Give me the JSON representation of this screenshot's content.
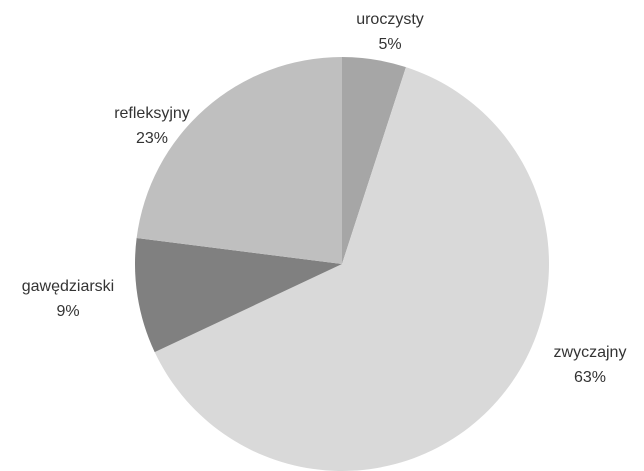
{
  "chart_data": {
    "type": "pie",
    "categories": [
      "uroczysty",
      "zwyczajny",
      "gawędziarski",
      "refleksyjny"
    ],
    "values": [
      5,
      63,
      9,
      23
    ],
    "value_labels": [
      "5%",
      "63%",
      "9%",
      "23%"
    ],
    "colors": [
      "#a6a6a6",
      "#d9d9d9",
      "#808080",
      "#bfbfbf"
    ]
  }
}
